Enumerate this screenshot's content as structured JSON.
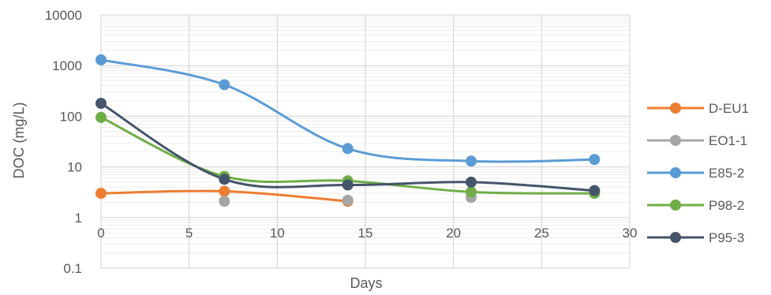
{
  "chart_data": {
    "type": "scatter",
    "title": "",
    "xlabel": "Days",
    "ylabel": "DOC (mg/L)",
    "xlim": [
      0,
      30
    ],
    "xticks": [
      "0",
      "5",
      "10",
      "15",
      "20",
      "25",
      "30"
    ],
    "ylim": [
      0.1,
      10000
    ],
    "yscale": "log",
    "yticks": [
      "0.1",
      "1",
      "10",
      "100",
      "1000",
      "10000"
    ],
    "grid": true,
    "legend_position": "right",
    "series": [
      {
        "name": "D-EU1",
        "color": "#ed7d31",
        "x": [
          0,
          7,
          14
        ],
        "y": [
          3.0,
          3.3,
          2.1
        ]
      },
      {
        "name": "EO1-1",
        "color": "#a5a5a5",
        "x": [
          7,
          14,
          21
        ],
        "y": [
          2.1,
          2.2,
          2.5
        ]
      },
      {
        "name": "E85-2",
        "color": "#5b9bd5",
        "x": [
          0,
          7,
          14,
          21,
          28
        ],
        "y": [
          1300,
          420,
          23,
          13,
          14
        ]
      },
      {
        "name": "P98-2",
        "color": "#70ad47",
        "x": [
          0,
          7,
          14,
          21,
          28
        ],
        "y": [
          95,
          6.5,
          5.3,
          3.2,
          3.0
        ]
      },
      {
        "name": "P95-3",
        "color": "#44546a",
        "x": [
          0,
          7,
          14,
          21,
          28
        ],
        "y": [
          180,
          5.7,
          4.4,
          5.0,
          3.4
        ]
      }
    ]
  }
}
